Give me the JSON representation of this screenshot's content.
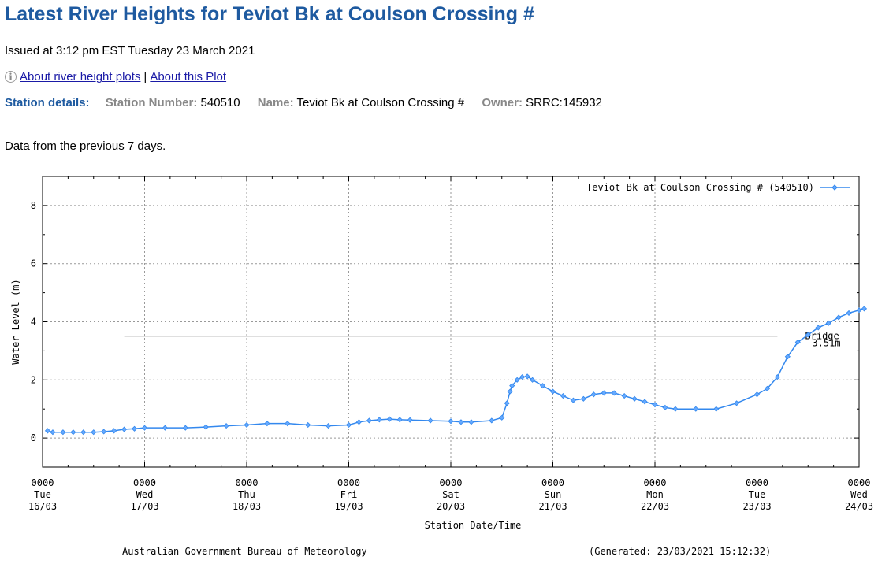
{
  "page": {
    "title": "Latest River Heights for Teviot Bk at Coulson Crossing #",
    "issued": "Issued at 3:12 pm EST Tuesday 23 March 2021",
    "links": {
      "about_plots": "About river height plots",
      "separator": "|",
      "about_this": "About this Plot"
    },
    "station": {
      "heading": "Station details:",
      "number_label": "Station Number:",
      "number": "540510",
      "name_label": "Name:",
      "name": "Teviot Bk at Coulson Crossing #",
      "owner_label": "Owner:",
      "owner": "SRRC:145932"
    },
    "intro": "Data from the previous 7 days."
  },
  "chart_data": {
    "type": "line",
    "ylabel": "Water Level (m)",
    "xlabel": "Station Date/Time",
    "ylim": [
      -1,
      9
    ],
    "yticks": [
      0,
      2,
      4,
      6,
      8
    ],
    "xlim_days": [
      0,
      8
    ],
    "grid": true,
    "legend": "top-right",
    "x_ticks": [
      {
        "time": "0000",
        "day": "Tue",
        "date": "16/03"
      },
      {
        "time": "0000",
        "day": "Wed",
        "date": "17/03"
      },
      {
        "time": "0000",
        "day": "Thu",
        "date": "18/03"
      },
      {
        "time": "0000",
        "day": "Fri",
        "date": "19/03"
      },
      {
        "time": "0000",
        "day": "Sat",
        "date": "20/03"
      },
      {
        "time": "0000",
        "day": "Sun",
        "date": "21/03"
      },
      {
        "time": "0000",
        "day": "Mon",
        "date": "22/03"
      },
      {
        "time": "0000",
        "day": "Tue",
        "date": "23/03"
      },
      {
        "time": "0000",
        "day": "Wed",
        "date": "24/03"
      }
    ],
    "series": [
      {
        "name": "Teviot Bk at Coulson Crossing # (540510)",
        "color": "#3388ee",
        "x": [
          0.05,
          0.1,
          0.2,
          0.3,
          0.4,
          0.5,
          0.6,
          0.7,
          0.8,
          0.9,
          1.0,
          1.2,
          1.4,
          1.6,
          1.8,
          2.0,
          2.2,
          2.4,
          2.6,
          2.8,
          3.0,
          3.1,
          3.2,
          3.3,
          3.4,
          3.5,
          3.6,
          3.8,
          4.0,
          4.1,
          4.2,
          4.4,
          4.5,
          4.55,
          4.58,
          4.6,
          4.65,
          4.7,
          4.75,
          4.8,
          4.9,
          5.0,
          5.1,
          5.2,
          5.3,
          5.4,
          5.5,
          5.6,
          5.7,
          5.8,
          5.9,
          6.0,
          6.1,
          6.2,
          6.4,
          6.6,
          6.8,
          7.0,
          7.1,
          7.2,
          7.3,
          7.4,
          7.5,
          7.6,
          7.7,
          7.8,
          7.9,
          8.0,
          8.05
        ],
        "y": [
          0.25,
          0.2,
          0.2,
          0.2,
          0.2,
          0.2,
          0.22,
          0.25,
          0.3,
          0.32,
          0.35,
          0.35,
          0.35,
          0.38,
          0.42,
          0.45,
          0.5,
          0.5,
          0.45,
          0.42,
          0.45,
          0.55,
          0.6,
          0.63,
          0.65,
          0.63,
          0.62,
          0.6,
          0.58,
          0.55,
          0.55,
          0.6,
          0.7,
          1.2,
          1.6,
          1.8,
          2.0,
          2.1,
          2.12,
          2.0,
          1.8,
          1.6,
          1.45,
          1.3,
          1.35,
          1.5,
          1.55,
          1.55,
          1.45,
          1.35,
          1.25,
          1.15,
          1.05,
          1.0,
          1.0,
          1.0,
          1.2,
          1.5,
          1.7,
          2.1,
          2.8,
          3.3,
          3.55,
          3.8,
          3.95,
          4.15,
          4.3,
          4.4,
          4.45
        ]
      }
    ],
    "threshold": {
      "label": "Bridge",
      "value_label": "3.51m",
      "value": 3.51,
      "x_start": 0.8,
      "x_end": 7.2
    },
    "footer_left": "Australian Government Bureau of Meteorology",
    "footer_right": "(Generated: 23/03/2021 15:12:32)"
  }
}
